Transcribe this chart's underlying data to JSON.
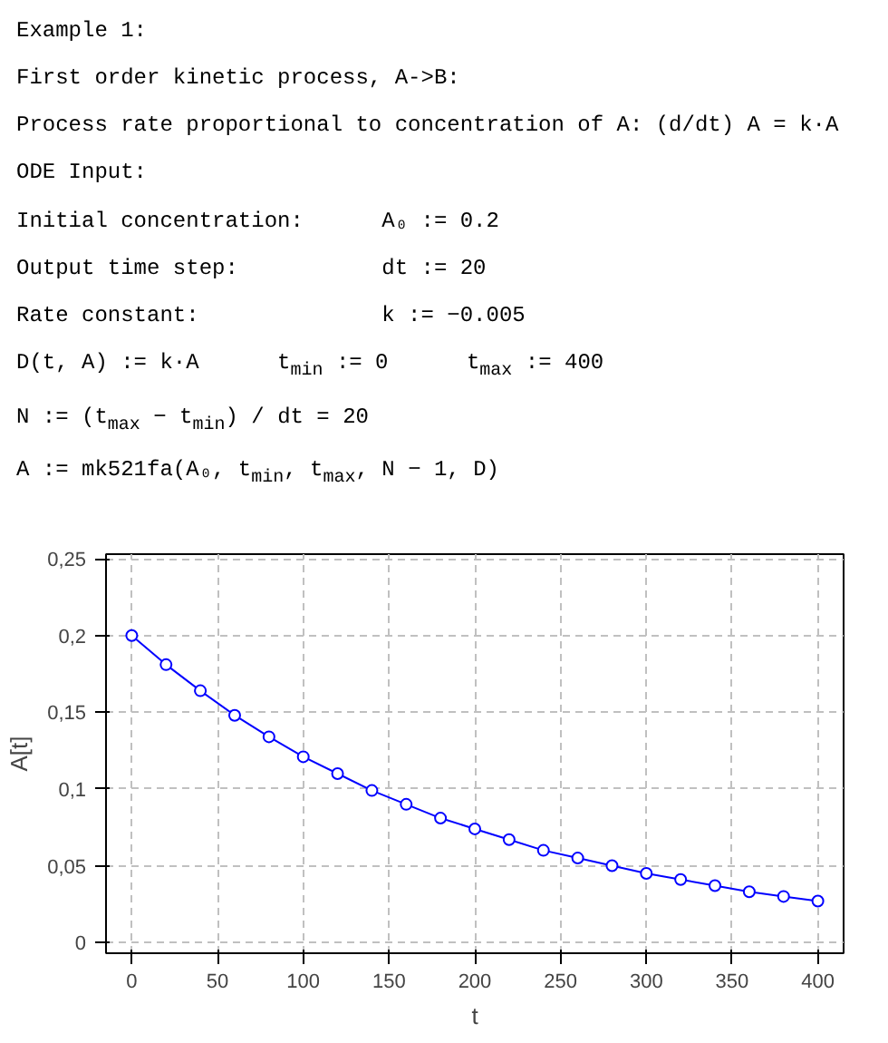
{
  "chart_data": {
    "type": "line",
    "xlabel": "t",
    "ylabel": "A[t]",
    "annotations": [
      "Example 1:",
      "First order kinetic process, A->B:",
      "Process rate proportional to concentration of A: (d/dt) A = k·A",
      "ODE Input:",
      "Initial concentration:      A₀ := 0.2",
      "Output time step:           dt := 20",
      "Rate constant:              k := −0.005",
      "D(t, A) := k·A      t$_{min}$ := 0      t$_{max}$ := 400",
      "N := (t$_{max}$ − t$_{min}$) / dt = 20",
      "A := mk521fa(A₀, t$_{min}$, t$_{max}$, N − 1, D)"
    ],
    "x": [
      0,
      20,
      40,
      60,
      80,
      100,
      120,
      140,
      160,
      180,
      200,
      220,
      240,
      260,
      280,
      300,
      320,
      340,
      360,
      380,
      400
    ],
    "series": [
      {
        "color": "#0000ff",
        "values": [
          0.2,
          0.181,
          0.164,
          0.148,
          0.134,
          0.121,
          0.11,
          0.099,
          0.09,
          0.081,
          0.074,
          0.067,
          0.06,
          0.055,
          0.05,
          0.045,
          0.041,
          0.037,
          0.033,
          0.03,
          0.027
        ]
      }
    ],
    "xlim": [
      -15,
      415
    ],
    "ylim": [
      -0.007,
      0.253
    ],
    "xticks": [
      0,
      50,
      100,
      150,
      200,
      250,
      300,
      350,
      400
    ],
    "yticks": [
      0,
      {
        "value": 0.05,
        "label": "0,05"
      },
      {
        "value": 0.1,
        "label": "0,1"
      },
      {
        "value": 0.15,
        "label": "0,15"
      },
      {
        "value": 0.2,
        "label": "0,2"
      },
      {
        "value": 0.25,
        "label": "0,25"
      }
    ],
    "grid": true,
    "marker": "circle",
    "line_style": "solid"
  }
}
